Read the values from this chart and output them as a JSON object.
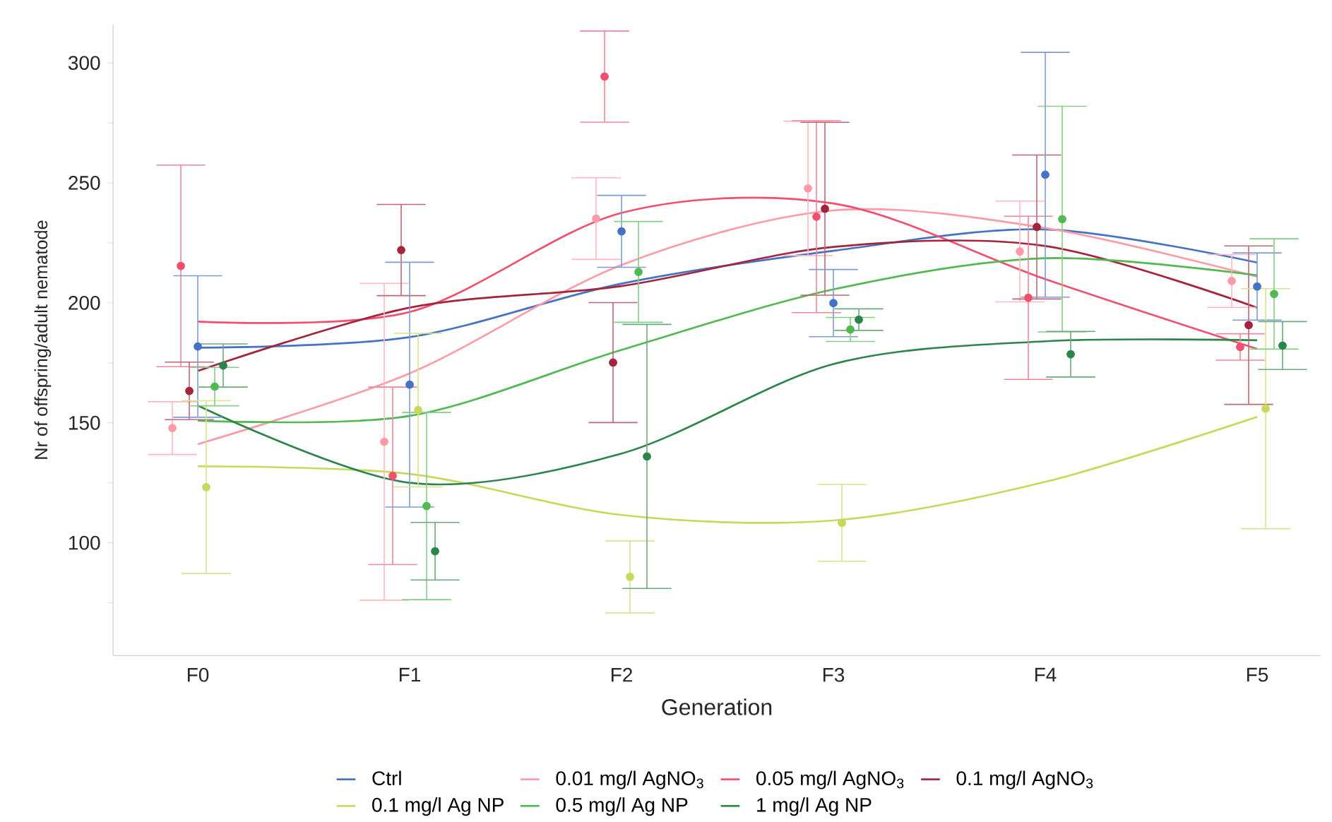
{
  "chart_data": {
    "type": "line",
    "xlabel": "Generation",
    "ylabel": "Nr of offspring/adult nematode",
    "categories": [
      "F0",
      "F1",
      "F2",
      "F3",
      "F4",
      "F5"
    ],
    "ylim": [
      53,
      316
    ],
    "yticks": [
      {
        "value": 75,
        "label": null
      },
      100,
      {
        "value": 125,
        "label": null
      },
      150,
      {
        "value": 175,
        "label": null
      },
      200,
      {
        "value": 225,
        "label": null
      },
      250,
      {
        "value": 275,
        "label": null
      },
      300
    ],
    "grid": false,
    "legend": "bottom",
    "series": [
      {
        "name": "Ctrl",
        "color": "#4472c4",
        "values": [
          181.3,
          185.7,
          208,
          221.7,
          230.6,
          216.8
        ]
      },
      {
        "name": "0.01 mg/l AgNO$_{3}$",
        "color": "#ff9aa6",
        "values": [
          141.1,
          170.6,
          215.8,
          238.5,
          231.2,
          210.9
        ]
      },
      {
        "name": "0.05 mg/l AgNO$_{3}$",
        "color": "#f0506e",
        "values": [
          192.2,
          196.2,
          237.5,
          241.4,
          209.9,
          180.8
        ]
      },
      {
        "name": "0.1 mg/l AgNO$_{3}$",
        "color": "#a5243d",
        "values": [
          171.6,
          198,
          207,
          223.3,
          223.7,
          198
        ]
      },
      {
        "name": "0.1 mg/l Ag NP",
        "color": "#c5d95a",
        "values": [
          131.9,
          128.7,
          111.6,
          109.3,
          125.4,
          152.5
        ]
      },
      {
        "name": "0.5 mg/l Ag NP",
        "color": "#52b852",
        "values": [
          150.9,
          152.9,
          180.4,
          205.6,
          218.6,
          211.5
        ]
      },
      {
        "name": "1 mg/l Ag NP",
        "color": "#2b8548",
        "values": [
          157.2,
          125,
          137.2,
          174.5,
          184,
          184.4
        ]
      },
      {
        "type": "scatter",
        "marker": "circle",
        "color": "#ff9aa6",
        "values": [
          147.8,
          142.1,
          235.1,
          247.7,
          221.4,
          209.1
        ],
        "errors": [
          11,
          66,
          17,
          28,
          21,
          11
        ]
      },
      {
        "type": "scatter",
        "marker": "circle",
        "color": "#f0506e",
        "values": [
          215.4,
          127.9,
          294.3,
          235.9,
          202.1,
          181.6
        ],
        "errors": [
          42,
          37,
          19,
          40,
          34,
          5.5
        ]
      },
      {
        "type": "scatter",
        "marker": "circle",
        "color": "#a5243d",
        "values": [
          163.3,
          222,
          175.1,
          239.2,
          231.6,
          190.7
        ],
        "errors": [
          12,
          19,
          25,
          36,
          30,
          33
        ]
      },
      {
        "type": "scatter",
        "marker": "circle",
        "color": "#4472c4",
        "values": [
          181.8,
          165.9,
          229.8,
          199.9,
          253.4,
          206.8
        ],
        "errors": [
          29.5,
          51,
          15,
          14,
          51,
          14
        ]
      },
      {
        "type": "scatter",
        "marker": "circle",
        "color": "#c5d95a",
        "values": [
          123.2,
          155.3,
          85.8,
          108.3,
          null,
          155.9
        ],
        "errors": [
          36,
          32,
          15,
          16,
          null,
          50
        ]
      },
      {
        "type": "scatter",
        "marker": "circle",
        "color": "#52b852",
        "values": [
          165.1,
          115.3,
          212.9,
          188.9,
          234.9,
          203.7
        ],
        "errors": [
          8,
          39,
          21,
          5,
          47,
          23
        ]
      },
      {
        "type": "scatter",
        "marker": "circle",
        "color": "#2b8548",
        "values": [
          173.9,
          96.5,
          136,
          193,
          178.6,
          182.2
        ],
        "errors": [
          9,
          12,
          55,
          4.5,
          9.5,
          10
        ]
      }
    ]
  }
}
